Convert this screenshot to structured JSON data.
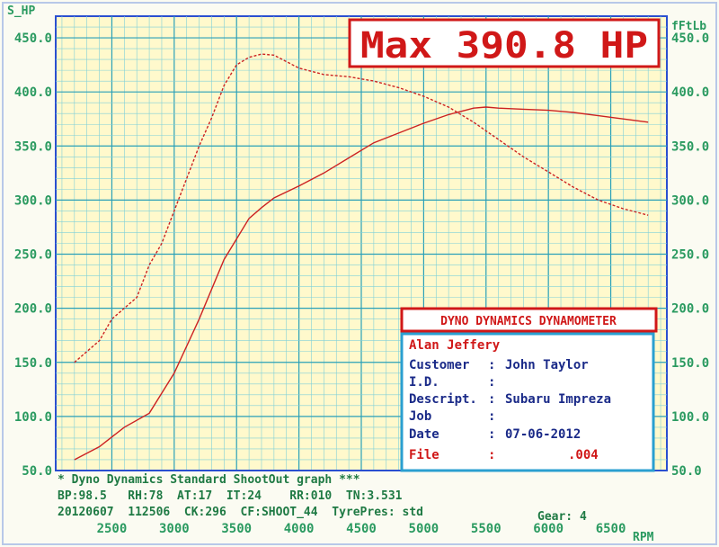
{
  "chart_data": {
    "type": "line",
    "left_axis_label": "S_HP",
    "right_axis_label": "fFtLb",
    "x_axis_label": "RPM",
    "x_ticks": [
      2500,
      3000,
      3500,
      4000,
      4500,
      5000,
      5500,
      6000,
      6500
    ],
    "xlim": [
      2050,
      6950
    ],
    "left_ticks": [
      "50.0",
      "100.0",
      "150.0",
      "200.0",
      "250.0",
      "300.0",
      "350.0",
      "400.0",
      "450.0"
    ],
    "right_ticks": [
      "50.0",
      "100.0",
      "150.0",
      "200.0",
      "250.0",
      "300.0",
      "350.0",
      "400.0",
      "450.0"
    ],
    "ylim": [
      50,
      470
    ],
    "grid": true,
    "max_label": "Max 390.8 HP",
    "series": [
      {
        "role": "power",
        "color": "#cc2222",
        "x": [
          2200,
          2400,
          2600,
          2800,
          3000,
          3200,
          3400,
          3600,
          3700,
          3800,
          4000,
          4200,
          4400,
          4600,
          4800,
          5000,
          5200,
          5400,
          5500,
          5600,
          5800,
          6000,
          6200,
          6400,
          6600,
          6800
        ],
        "y": [
          60,
          72,
          90,
          103,
          140,
          190,
          245,
          283,
          293,
          302,
          313,
          325,
          339,
          353,
          362,
          371,
          379,
          385,
          386,
          385,
          384,
          383,
          381,
          378,
          375,
          372
        ]
      },
      {
        "role": "torque",
        "color": "#cc2222",
        "x": [
          2200,
          2300,
          2400,
          2500,
          2600,
          2700,
          2800,
          2900,
          3000,
          3100,
          3200,
          3300,
          3400,
          3500,
          3600,
          3700,
          3800,
          4000,
          4200,
          4400,
          4600,
          4800,
          5000,
          5200,
          5400,
          5600,
          5800,
          6000,
          6200,
          6400,
          6600,
          6800
        ],
        "y": [
          150,
          160,
          170,
          190,
          200,
          210,
          240,
          260,
          290,
          320,
          350,
          376,
          406,
          425,
          432,
          435,
          434,
          422,
          416,
          414,
          410,
          404,
          396,
          386,
          372,
          356,
          340,
          326,
          312,
          300,
          292,
          286
        ]
      }
    ]
  },
  "footer": {
    "line1": "* Dyno Dynamics Standard ShootOut graph ***",
    "line2": "BP:98.5   RH:78  AT:17  IT:24    RR:010  TN:3.531",
    "line3": "20120607  112506  CK:296  CF:SHOOT_44  TyrePres: std",
    "gear": "Gear: 4"
  },
  "info_box": {
    "title": "DYNO DYNAMICS DYNAMOMETER",
    "operator": "Alan Jeffery",
    "rows": [
      {
        "label": "Customer",
        "value": "John Taylor"
      },
      {
        "label": "I.D.",
        "value": ""
      },
      {
        "label": "Descript.",
        "value": "Subaru Impreza"
      },
      {
        "label": "Job",
        "value": ""
      },
      {
        "label": "Date",
        "value": "07-06-2012"
      },
      {
        "label": "File",
        "value": ".004"
      }
    ]
  },
  "colors": {
    "frame": "#2a4fd0",
    "grid": "#3ab8c8",
    "tick_text": "#2a9a60",
    "curve": "#cc2222",
    "plot_bg": "#fff9cc",
    "max_text": "#d01818"
  }
}
